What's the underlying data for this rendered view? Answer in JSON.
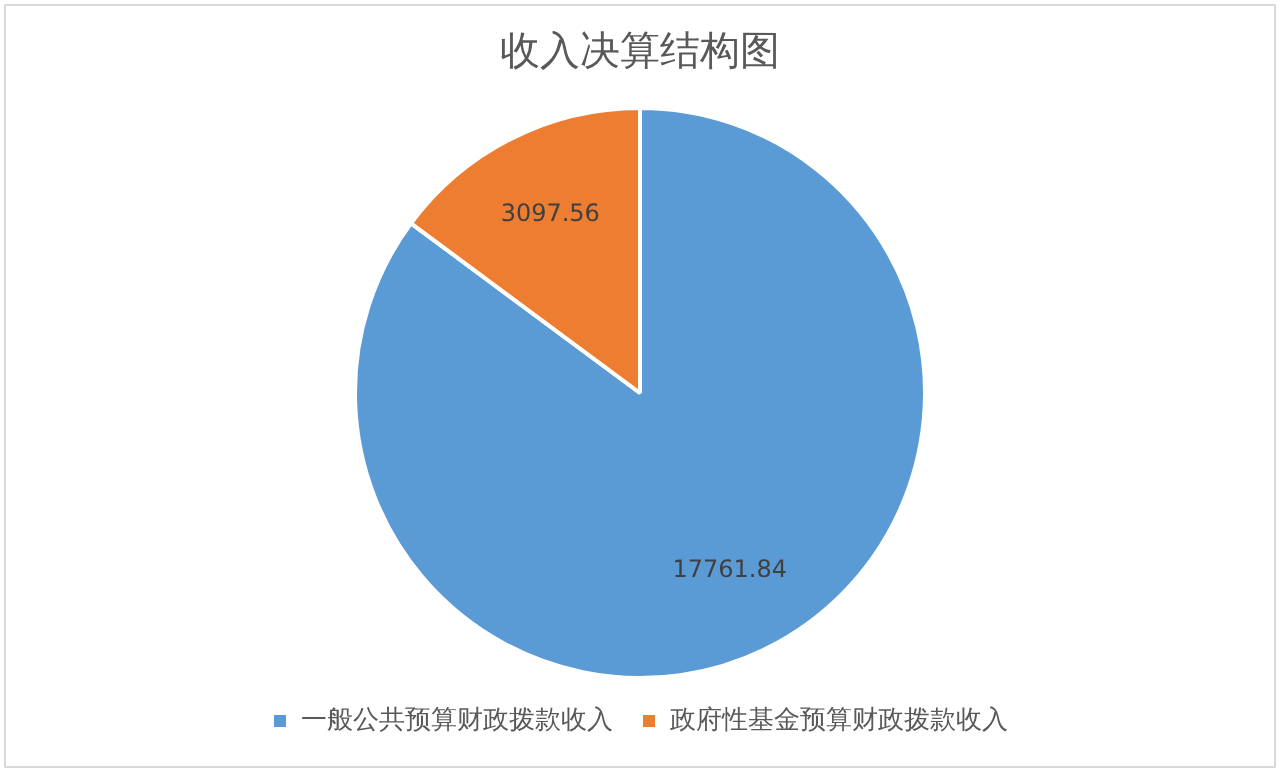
{
  "chart_data": {
    "type": "pie",
    "title": "收入决算结构图",
    "categories": [
      "一般公共预算财政拨款收入",
      "政府性基金预算财政拨款收入"
    ],
    "values": [
      17761.84,
      3097.56
    ],
    "colors": [
      "#5b9bd5",
      "#ed7d31"
    ],
    "data_labels": true,
    "legend": "bottom"
  }
}
